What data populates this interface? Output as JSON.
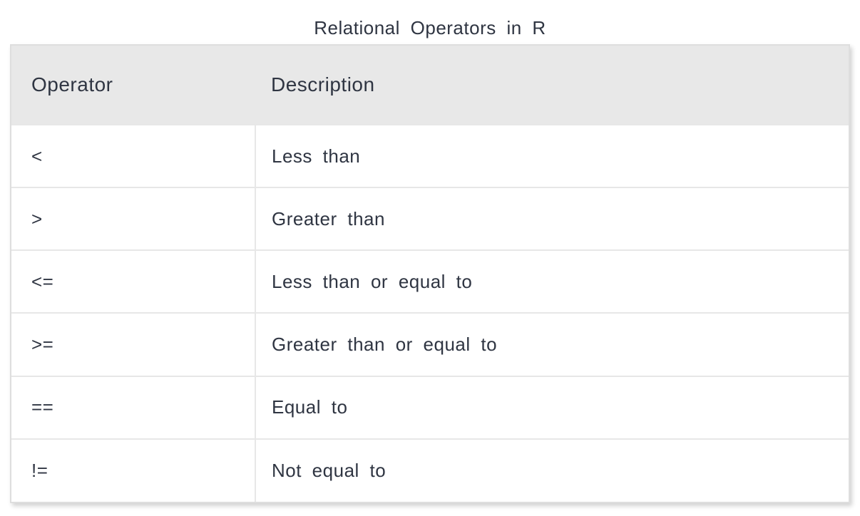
{
  "title": "Relational Operators in R",
  "table": {
    "headers": [
      "Operator",
      "Description"
    ],
    "rows": [
      {
        "operator": "<",
        "description": "Less than"
      },
      {
        "operator": ">",
        "description": "Greater than"
      },
      {
        "operator": "<=",
        "description": "Less than or equal to"
      },
      {
        "operator": ">=",
        "description": "Greater than or equal to"
      },
      {
        "operator": "==",
        "description": "Equal to"
      },
      {
        "operator": "!=",
        "description": "Not equal to"
      }
    ]
  },
  "colors": {
    "header_bg": "#e8e8e8",
    "row_bg": "#ffffff",
    "grid_line": "#e7e7e7",
    "outer_border": "#dedede",
    "text": "#2f3542"
  }
}
